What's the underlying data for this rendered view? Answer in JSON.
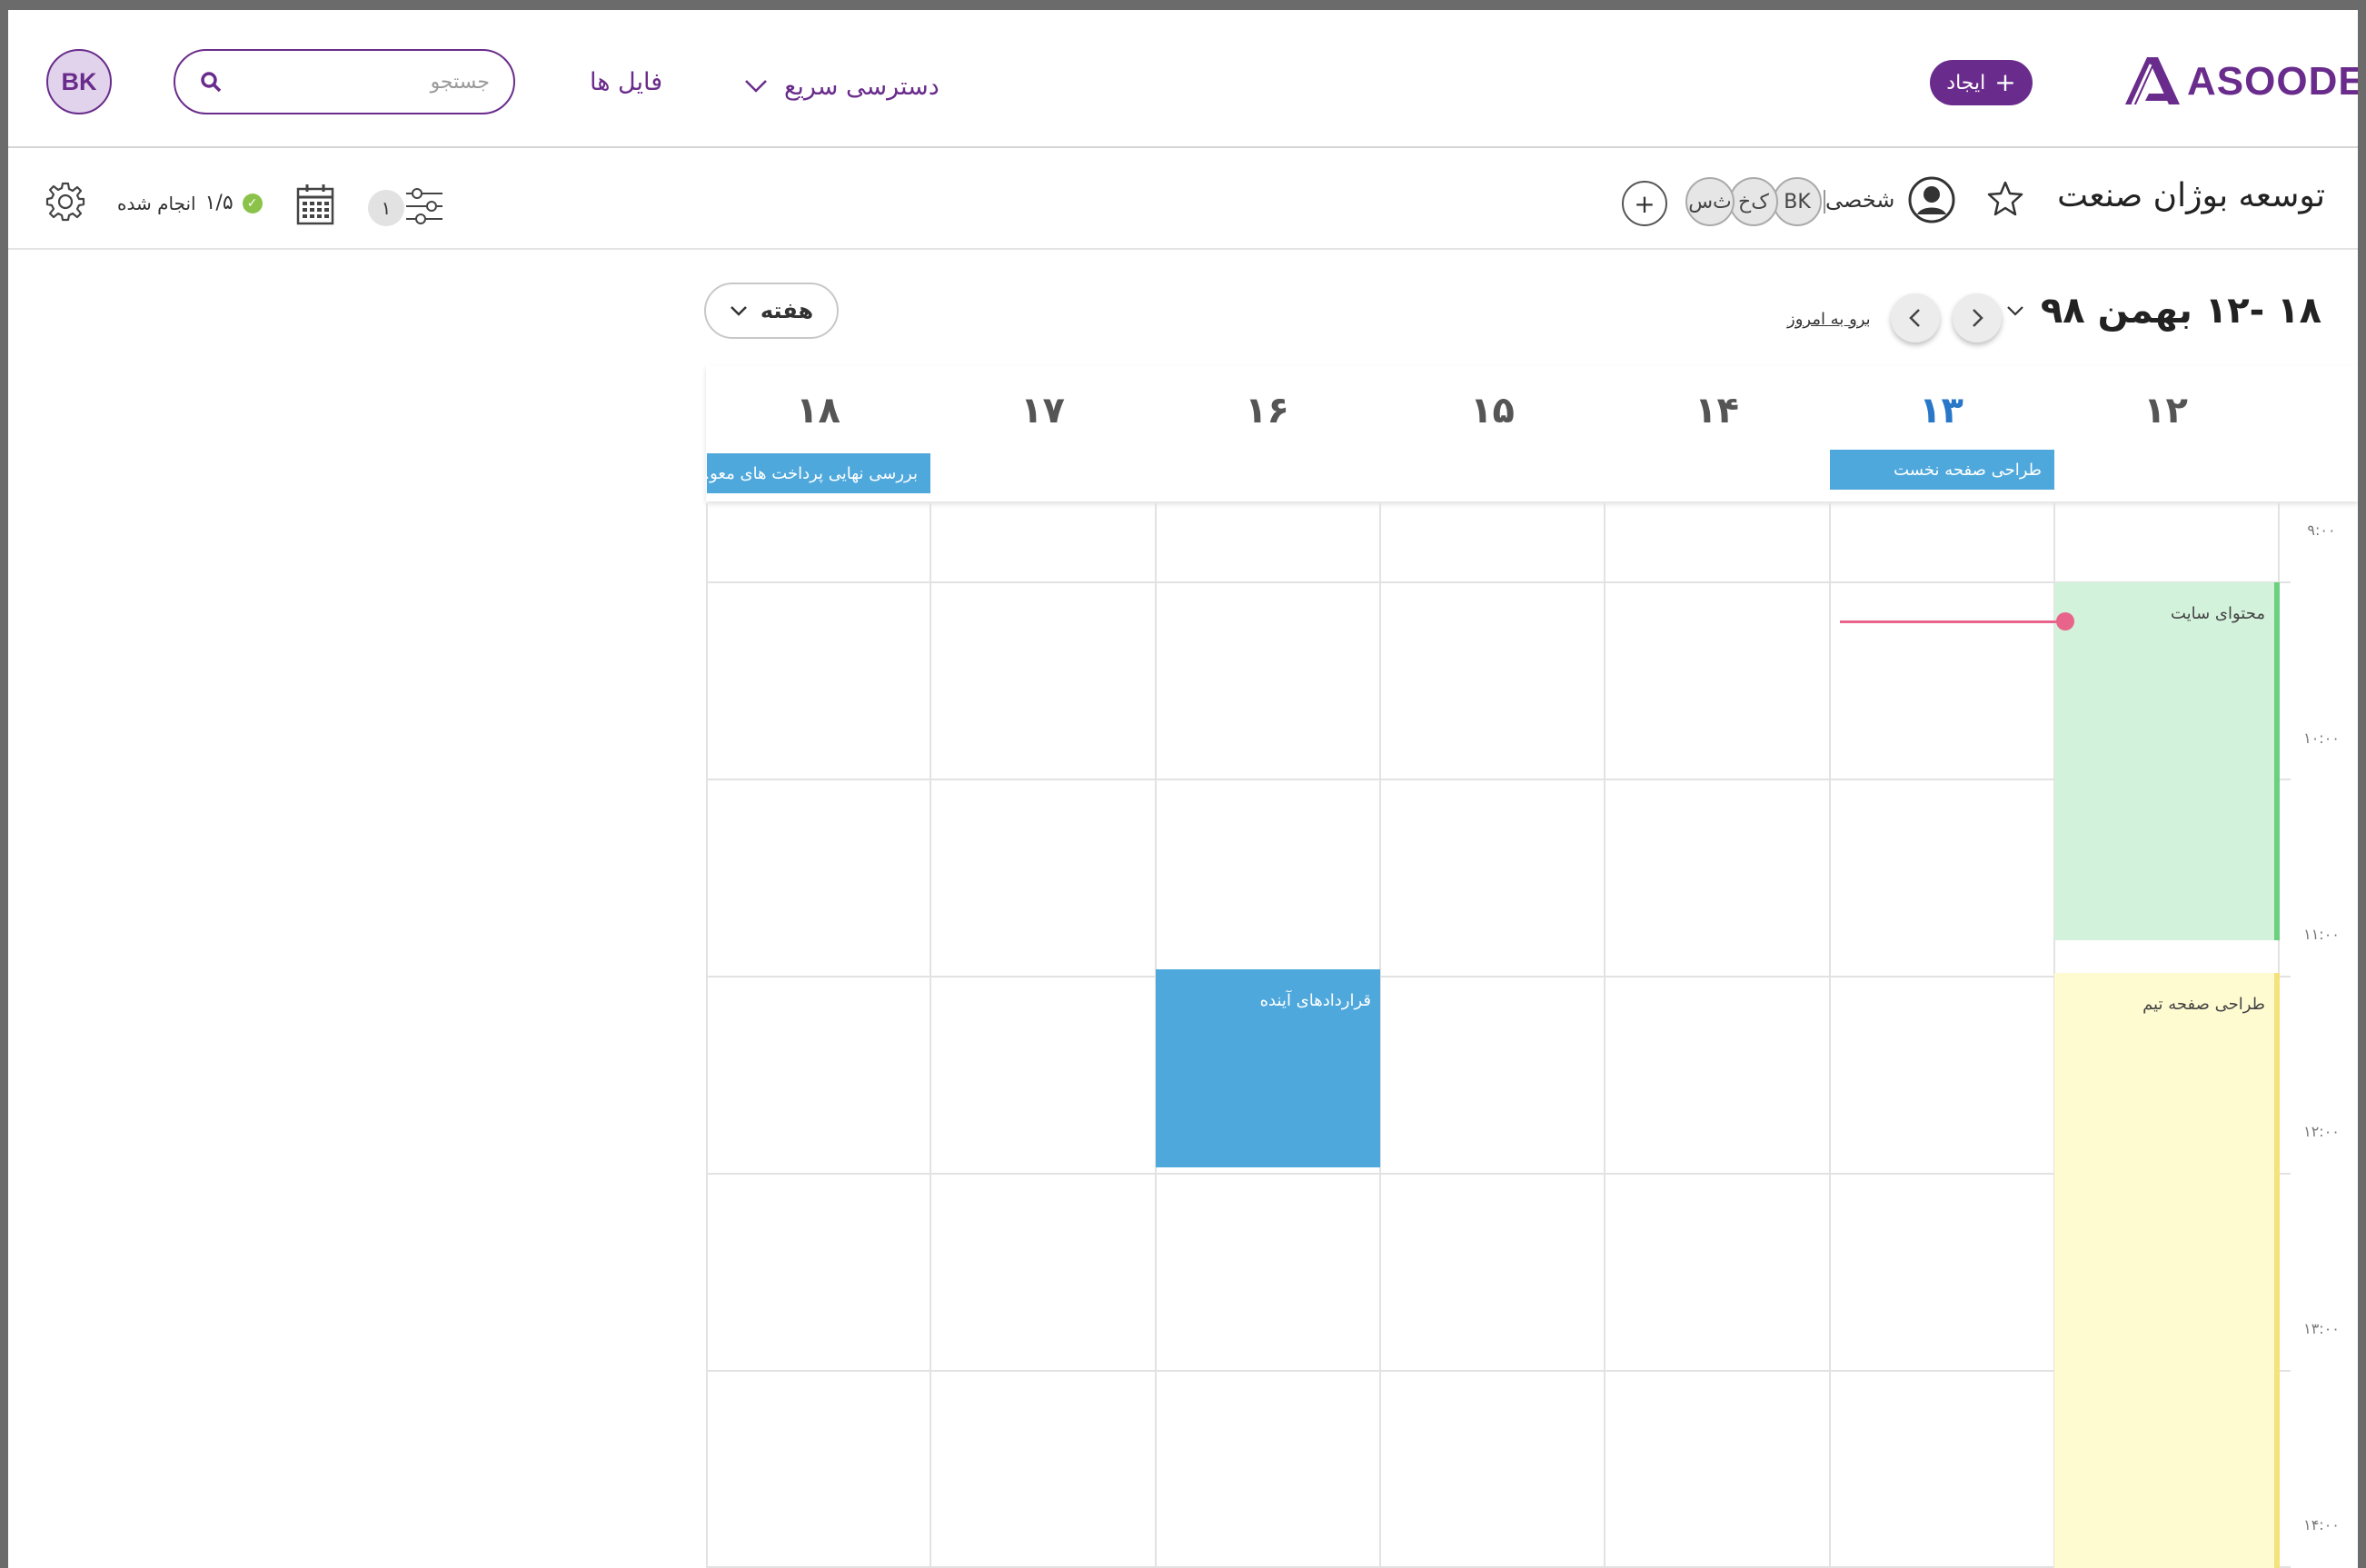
{
  "header": {
    "logo_text": "ASOODE",
    "create_label": "ایجاد",
    "quick_access_label": "دسترسی سریع",
    "files_label": "فایل ها",
    "search_placeholder": "جستجو",
    "user_initials": "BK"
  },
  "project": {
    "title": "توسعه بوژان صنعت",
    "personal_label": "شخصی",
    "members": [
      "BK",
      "ک‌خ",
      "ث‌س"
    ],
    "filter_count": "۱",
    "done_ratio": "۱/۵",
    "done_label": "انجام شده"
  },
  "calendar": {
    "range_title": "۱۸ -۱۲ بهمن ۹۸",
    "today_link": "برو به امروز",
    "view_label": "هفته",
    "days": [
      "۱۸",
      "۱۷",
      "۱۶",
      "۱۵",
      "۱۴",
      "۱۳",
      "۱۲"
    ],
    "today_day": "۱۳",
    "allday_events": [
      {
        "title": "بررسی نهایی پرداخت های معو...",
        "day": "۱۸"
      },
      {
        "title": "طراحی صفحه نخست",
        "day": "۱۳"
      }
    ],
    "time_labels": [
      "۹:۰۰",
      "۱۰:۰۰",
      "۱۱:۰۰",
      "۱۲:۰۰",
      "۱۳:۰۰",
      "۱۴:۰۰"
    ],
    "events": [
      {
        "title": "محتوای سایت",
        "day": "۱۲",
        "color": "#d3f2dc",
        "accent": "#6cd07f"
      },
      {
        "title": "طراحی صفحه تیم",
        "day": "۱۲",
        "color": "#fffbd0",
        "accent": "#f4e27a"
      },
      {
        "title": "قراردادهای آینده",
        "day": "۱۶",
        "color": "#4fa8dc"
      }
    ]
  },
  "colors": {
    "brand": "#6a2c8c",
    "today": "#2877c9",
    "event_blue": "#4fa8dc",
    "now_line": "#e8648a"
  }
}
